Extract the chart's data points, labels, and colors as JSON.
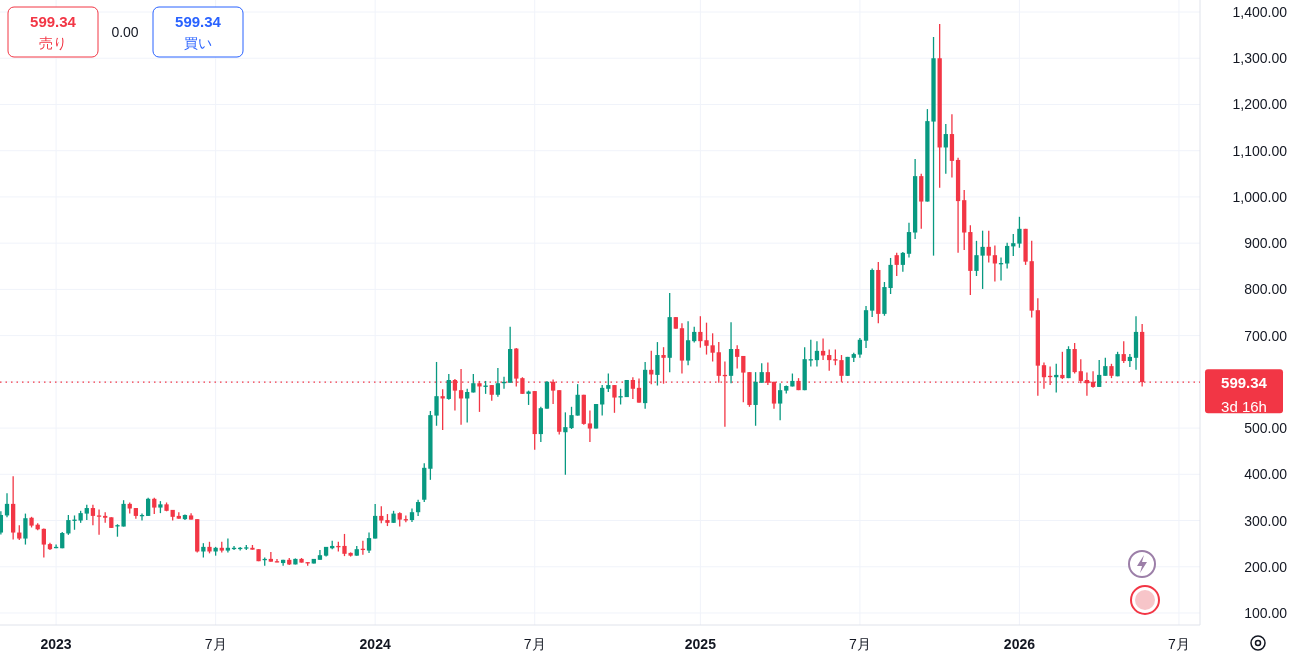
{
  "chart_data": {
    "type": "candlestick",
    "x": [
      "2022-10-31",
      "2022-11-07",
      "2022-11-14",
      "2022-11-21",
      "2022-11-28",
      "2022-12-05",
      "2022-12-12",
      "2022-12-19",
      "2022-12-26",
      "2023-01-02",
      "2023-01-09",
      "2023-01-16",
      "2023-01-23",
      "2023-01-30",
      "2023-02-06",
      "2023-02-13",
      "2023-02-20",
      "2023-02-27",
      "2023-03-06",
      "2023-03-13",
      "2023-03-20",
      "2023-03-27",
      "2023-04-03",
      "2023-04-10",
      "2023-04-17",
      "2023-04-24",
      "2023-05-01",
      "2023-05-08",
      "2023-05-15",
      "2023-05-22",
      "2023-05-29",
      "2023-06-05",
      "2023-06-12",
      "2023-06-19",
      "2023-06-26",
      "2023-07-03",
      "2023-07-10",
      "2023-07-17",
      "2023-07-24",
      "2023-07-31",
      "2023-08-07",
      "2023-08-14",
      "2023-08-21",
      "2023-08-28",
      "2023-09-04",
      "2023-09-11",
      "2023-09-18",
      "2023-09-25",
      "2023-10-02",
      "2023-10-09",
      "2023-10-16",
      "2023-10-23",
      "2023-10-30",
      "2023-11-06",
      "2023-11-13",
      "2023-11-20",
      "2023-11-27",
      "2023-12-04",
      "2023-12-11",
      "2023-12-18",
      "2023-12-25",
      "2024-01-01",
      "2024-01-08",
      "2024-01-15",
      "2024-01-22",
      "2024-01-29",
      "2024-02-05",
      "2024-02-12",
      "2024-02-19",
      "2024-02-26",
      "2024-03-04",
      "2024-03-11",
      "2024-03-18",
      "2024-03-25",
      "2024-04-01",
      "2024-04-08",
      "2024-04-15",
      "2024-04-22",
      "2024-04-29",
      "2024-05-06",
      "2024-05-13",
      "2024-05-20",
      "2024-05-27",
      "2024-06-03",
      "2024-06-10",
      "2024-06-17",
      "2024-06-24",
      "2024-07-01",
      "2024-07-08",
      "2024-07-15",
      "2024-07-22",
      "2024-07-29",
      "2024-08-05",
      "2024-08-12",
      "2024-08-19",
      "2024-08-26",
      "2024-09-02",
      "2024-09-09",
      "2024-09-16",
      "2024-09-23",
      "2024-09-30",
      "2024-10-07",
      "2024-10-14",
      "2024-10-21",
      "2024-10-28",
      "2024-11-04",
      "2024-11-11",
      "2024-11-18",
      "2024-11-25",
      "2024-12-02",
      "2024-12-09",
      "2024-12-16",
      "2024-12-23",
      "2024-12-30",
      "2025-01-06",
      "2025-01-13",
      "2025-01-20",
      "2025-01-27",
      "2025-02-03",
      "2025-02-10",
      "2025-02-17",
      "2025-02-24",
      "2025-03-03",
      "2025-03-10",
      "2025-03-17",
      "2025-03-24",
      "2025-03-31",
      "2025-04-07",
      "2025-04-14",
      "2025-04-21",
      "2025-04-28",
      "2025-05-05",
      "2025-05-12",
      "2025-05-19",
      "2025-05-26",
      "2025-06-02",
      "2025-06-09",
      "2025-06-16",
      "2025-06-23",
      "2025-06-30",
      "2025-07-07",
      "2025-07-14",
      "2025-07-21",
      "2025-07-28",
      "2025-08-04",
      "2025-08-11",
      "2025-08-18",
      "2025-08-25",
      "2025-09-01",
      "2025-09-08",
      "2025-09-15",
      "2025-09-22",
      "2025-09-29",
      "2025-10-06",
      "2025-10-13",
      "2025-10-20",
      "2025-10-27",
      "2025-11-03",
      "2025-11-10",
      "2025-11-17",
      "2025-11-24",
      "2025-12-01",
      "2025-12-08",
      "2025-12-15",
      "2025-12-22",
      "2025-12-29",
      "2026-01-05",
      "2026-01-12",
      "2026-01-19",
      "2026-01-26",
      "2026-02-02",
      "2026-02-09",
      "2026-02-16",
      "2026-02-23",
      "2026-03-02",
      "2026-03-09",
      "2026-03-16",
      "2026-03-23",
      "2026-03-30",
      "2026-04-06",
      "2026-04-13",
      "2026-04-20",
      "2026-04-27",
      "2026-05-04",
      "2026-05-11",
      "2026-05-18",
      "2026-05-25"
    ],
    "ohlc": [
      [
        274,
        320,
        270,
        312
      ],
      [
        311,
        359,
        307,
        336
      ],
      [
        336,
        396,
        259,
        274
      ],
      [
        274,
        290,
        258,
        261
      ],
      [
        261,
        315,
        248,
        305
      ],
      [
        306,
        308,
        285,
        289
      ],
      [
        291,
        294,
        279,
        281
      ],
      [
        282,
        283,
        220,
        248
      ],
      [
        249,
        252,
        236,
        238
      ],
      [
        241,
        248,
        240,
        243
      ],
      [
        240,
        275,
        240,
        273
      ],
      [
        272,
        312,
        269,
        301
      ],
      [
        300,
        311,
        280,
        302
      ],
      [
        300,
        321,
        295,
        316
      ],
      [
        315,
        334,
        301,
        327
      ],
      [
        327,
        334,
        290,
        310
      ],
      [
        311,
        324,
        269,
        310
      ],
      [
        310,
        318,
        295,
        306
      ],
      [
        307,
        307,
        284,
        284
      ],
      [
        288,
        292,
        265,
        290
      ],
      [
        287,
        344,
        287,
        336
      ],
      [
        336,
        339,
        315,
        326
      ],
      [
        327,
        327,
        304,
        310
      ],
      [
        310,
        315,
        300,
        312
      ],
      [
        310,
        349,
        310,
        347
      ],
      [
        347,
        349,
        314,
        328
      ],
      [
        328,
        342,
        316,
        335
      ],
      [
        335,
        339,
        320,
        321
      ],
      [
        323,
        323,
        300,
        308
      ],
      [
        310,
        318,
        304,
        304
      ],
      [
        303,
        313,
        301,
        312
      ],
      [
        311,
        316,
        302,
        302
      ],
      [
        303,
        303,
        231,
        233
      ],
      [
        233,
        251,
        220,
        243
      ],
      [
        243,
        254,
        229,
        233
      ],
      [
        233,
        243,
        224,
        241
      ],
      [
        241,
        254,
        231,
        235
      ],
      [
        235,
        261,
        231,
        241
      ],
      [
        240,
        245,
        236,
        241
      ],
      [
        240,
        243,
        235,
        241
      ],
      [
        240,
        247,
        236,
        242
      ],
      [
        241,
        247,
        237,
        237
      ],
      [
        238,
        238,
        212,
        212
      ],
      [
        215,
        220,
        202,
        217
      ],
      [
        217,
        232,
        211,
        211
      ],
      [
        212,
        217,
        210,
        211
      ],
      [
        208,
        215,
        202,
        215
      ],
      [
        215,
        219,
        204,
        205
      ],
      [
        205,
        218,
        205,
        217
      ],
      [
        217,
        219,
        209,
        209
      ],
      [
        210,
        210,
        202,
        209
      ],
      [
        207,
        217,
        207,
        217
      ],
      [
        215,
        236,
        215,
        225
      ],
      [
        224,
        243,
        222,
        243
      ],
      [
        240,
        256,
        238,
        245
      ],
      [
        245,
        254,
        233,
        244
      ],
      [
        245,
        271,
        223,
        228
      ],
      [
        230,
        231,
        222,
        224
      ],
      [
        224,
        245,
        224,
        238
      ],
      [
        239,
        256,
        226,
        238
      ],
      [
        235,
        274,
        230,
        262
      ],
      [
        261,
        336,
        261,
        310
      ],
      [
        310,
        331,
        294,
        300
      ],
      [
        301,
        314,
        288,
        295
      ],
      [
        295,
        321,
        295,
        315
      ],
      [
        316,
        318,
        287,
        302
      ],
      [
        303,
        311,
        296,
        302
      ],
      [
        301,
        326,
        297,
        318
      ],
      [
        318,
        345,
        310,
        340
      ],
      [
        345,
        424,
        340,
        414
      ],
      [
        412,
        537,
        388,
        528
      ],
      [
        527,
        643,
        505,
        569
      ],
      [
        569,
        584,
        496,
        564
      ],
      [
        563,
        617,
        561,
        604
      ],
      [
        604,
        606,
        538,
        581
      ],
      [
        582,
        628,
        507,
        564
      ],
      [
        564,
        585,
        512,
        578
      ],
      [
        577,
        617,
        577,
        597
      ],
      [
        597,
        602,
        535,
        590
      ],
      [
        589,
        602,
        574,
        592
      ],
      [
        593,
        593,
        559,
        572
      ],
      [
        572,
        630,
        568,
        597
      ],
      [
        597,
        611,
        585,
        600
      ],
      [
        598,
        719,
        598,
        671
      ],
      [
        672,
        673,
        590,
        607
      ],
      [
        608,
        610,
        574,
        574
      ],
      [
        574,
        581,
        550,
        579
      ],
      [
        580,
        580,
        453,
        487
      ],
      [
        487,
        546,
        470,
        543
      ],
      [
        542,
        602,
        542,
        600
      ],
      [
        600,
        605,
        552,
        581
      ],
      [
        582,
        582,
        486,
        492
      ],
      [
        491,
        534,
        399,
        502
      ],
      [
        500,
        546,
        498,
        528
      ],
      [
        527,
        595,
        527,
        572
      ],
      [
        572,
        572,
        507,
        509
      ],
      [
        510,
        538,
        470,
        499
      ],
      [
        499,
        552,
        499,
        552
      ],
      [
        551,
        593,
        527,
        587
      ],
      [
        585,
        618,
        578,
        593
      ],
      [
        593,
        593,
        533,
        566
      ],
      [
        567,
        585,
        551,
        569
      ],
      [
        567,
        604,
        567,
        604
      ],
      [
        604,
        610,
        563,
        585
      ],
      [
        587,
        607,
        555,
        555
      ],
      [
        554,
        643,
        542,
        626
      ],
      [
        626,
        667,
        595,
        616
      ],
      [
        615,
        686,
        592,
        658
      ],
      [
        658,
        675,
        596,
        652
      ],
      [
        652,
        792,
        621,
        740
      ],
      [
        740,
        740,
        715,
        715
      ],
      [
        716,
        727,
        618,
        646
      ],
      [
        646,
        731,
        636,
        690
      ],
      [
        688,
        719,
        685,
        708
      ],
      [
        708,
        742,
        674,
        688
      ],
      [
        690,
        728,
        659,
        678
      ],
      [
        679,
        705,
        644,
        663
      ],
      [
        664,
        686,
        598,
        613
      ],
      [
        615,
        644,
        503,
        614
      ],
      [
        613,
        729,
        597,
        671
      ],
      [
        671,
        679,
        629,
        654
      ],
      [
        656,
        656,
        556,
        620
      ],
      [
        621,
        621,
        546,
        550
      ],
      [
        550,
        621,
        505,
        600
      ],
      [
        598,
        640,
        598,
        621
      ],
      [
        621,
        642,
        593,
        598
      ],
      [
        600,
        600,
        542,
        553
      ],
      [
        553,
        597,
        517,
        582
      ],
      [
        581,
        592,
        575,
        591
      ],
      [
        590,
        618,
        590,
        602
      ],
      [
        602,
        608,
        582,
        582
      ],
      [
        582,
        675,
        582,
        649
      ],
      [
        648,
        691,
        633,
        649
      ],
      [
        647,
        688,
        633,
        667
      ],
      [
        667,
        694,
        647,
        657
      ],
      [
        658,
        670,
        624,
        647
      ],
      [
        649,
        670,
        636,
        646
      ],
      [
        647,
        658,
        600,
        613
      ],
      [
        613,
        654,
        613,
        654
      ],
      [
        652,
        663,
        643,
        660
      ],
      [
        659,
        695,
        652,
        691
      ],
      [
        689,
        764,
        673,
        755
      ],
      [
        754,
        845,
        740,
        842
      ],
      [
        842,
        859,
        727,
        747
      ],
      [
        747,
        816,
        743,
        805
      ],
      [
        803,
        868,
        790,
        853
      ],
      [
        874,
        879,
        829,
        853
      ],
      [
        853,
        881,
        838,
        879
      ],
      [
        877,
        944,
        869,
        924
      ],
      [
        923,
        1082,
        909,
        1045
      ],
      [
        1045,
        1050,
        931,
        990
      ],
      [
        990,
        1190,
        990,
        1164
      ],
      [
        1163,
        1346,
        873,
        1300
      ],
      [
        1300,
        1374,
        1020,
        1107
      ],
      [
        1107,
        1158,
        1050,
        1136
      ],
      [
        1136,
        1179,
        1042,
        1078
      ],
      [
        1080,
        1085,
        879,
        991
      ],
      [
        993,
        1015,
        885,
        923
      ],
      [
        924,
        939,
        788,
        840
      ],
      [
        840,
        905,
        829,
        874
      ],
      [
        873,
        927,
        801,
        892
      ],
      [
        892,
        927,
        858,
        873
      ],
      [
        874,
        895,
        817,
        856
      ],
      [
        855,
        869,
        819,
        857
      ],
      [
        856,
        901,
        845,
        894
      ],
      [
        893,
        920,
        872,
        900
      ],
      [
        899,
        957,
        890,
        931
      ],
      [
        931,
        931,
        853,
        860
      ],
      [
        861,
        905,
        739,
        754
      ],
      [
        755,
        781,
        570,
        635
      ],
      [
        636,
        642,
        585,
        610
      ],
      [
        613,
        633,
        593,
        612
      ],
      [
        610,
        639,
        577,
        615
      ],
      [
        615,
        665,
        606,
        608
      ],
      [
        608,
        677,
        608,
        671
      ],
      [
        671,
        684,
        618,
        621
      ],
      [
        623,
        649,
        597,
        602
      ],
      [
        604,
        620,
        570,
        597
      ],
      [
        600,
        623,
        587,
        589
      ],
      [
        589,
        647,
        589,
        615
      ],
      [
        613,
        652,
        613,
        634
      ],
      [
        634,
        639,
        608,
        613
      ],
      [
        612,
        665,
        612,
        660
      ],
      [
        660,
        688,
        641,
        645
      ],
      [
        645,
        660,
        632,
        654
      ],
      [
        652,
        742,
        626,
        708
      ],
      [
        708,
        725,
        590,
        599.34
      ]
    ],
    "xlim": [
      "2022-10-30",
      "2026-07-30"
    ],
    "xticks": [
      {
        "value": "2023-01-02",
        "label": "2023"
      },
      {
        "value": "2023-07-03",
        "label": "7月"
      },
      {
        "value": "2024-01-01",
        "label": "2024"
      },
      {
        "value": "2024-07-01",
        "label": "7月"
      },
      {
        "value": "2025-01-06",
        "label": "2025"
      },
      {
        "value": "2025-07-07",
        "label": "7月"
      },
      {
        "value": "2026-01-05",
        "label": "2026"
      },
      {
        "value": "2026-07-06",
        "label": "7月"
      }
    ],
    "ylim": [
      74,
      1426
    ],
    "yticks": [
      {
        "value": 100,
        "label": "100.00"
      },
      {
        "value": 200,
        "label": "200.00"
      },
      {
        "value": 300,
        "label": "300.00"
      },
      {
        "value": 400,
        "label": "400.00"
      },
      {
        "value": 500,
        "label": "500.00"
      },
      {
        "value": 600,
        "label": null
      },
      {
        "value": 700,
        "label": "700.00"
      },
      {
        "value": 800,
        "label": "800.00"
      },
      {
        "value": 900,
        "label": "900.00"
      },
      {
        "value": 1000,
        "label": "1,000.00"
      },
      {
        "value": 1100,
        "label": "1,100.00"
      },
      {
        "value": 1200,
        "label": "1,200.00"
      },
      {
        "value": 1300,
        "label": "1,300.00"
      },
      {
        "value": 1400,
        "label": "1,400.00"
      }
    ],
    "grid": true,
    "ref_lines": [
      {
        "axis": "y",
        "value": 599.34,
        "label": "599.34",
        "color": "#f23645",
        "line_style": "dotted"
      }
    ],
    "annotations": [
      "599.34",
      "売り",
      "0.00",
      "599.34",
      "買い",
      "3d 16h"
    ]
  }
}
